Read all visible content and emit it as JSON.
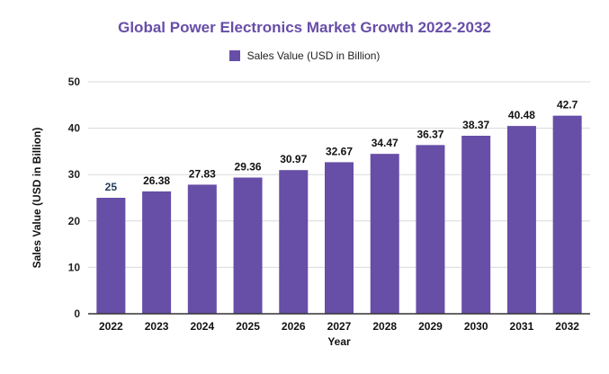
{
  "chart_data": {
    "type": "bar",
    "title": "Global Power Electronics Market Growth 2022-2032",
    "xlabel": "Year",
    "ylabel": "Sales Value (USD in Billion)",
    "categories": [
      "2022",
      "2023",
      "2024",
      "2025",
      "2026",
      "2027",
      "2028",
      "2029",
      "2030",
      "2031",
      "2032"
    ],
    "series": [
      {
        "name": "Sales Value (USD in Billion)",
        "values": [
          25,
          26.38,
          27.83,
          29.36,
          30.97,
          32.67,
          34.47,
          36.37,
          38.37,
          40.48,
          42.7
        ],
        "labels": [
          "25",
          "26.38",
          "27.83",
          "29.36",
          "30.97",
          "32.67",
          "34.47",
          "36.37",
          "38.37",
          "40.48",
          "42.7"
        ]
      }
    ],
    "ylim": [
      0,
      50
    ],
    "yticks": [
      0,
      10,
      20,
      30,
      40,
      50
    ],
    "grid": true,
    "legend_position": "top-center"
  },
  "colors": {
    "bar": "#674ea7",
    "title": "#674ea7",
    "first_label": "#1f3b57",
    "grid": "#d9d9d9",
    "axis": "#333333"
  }
}
